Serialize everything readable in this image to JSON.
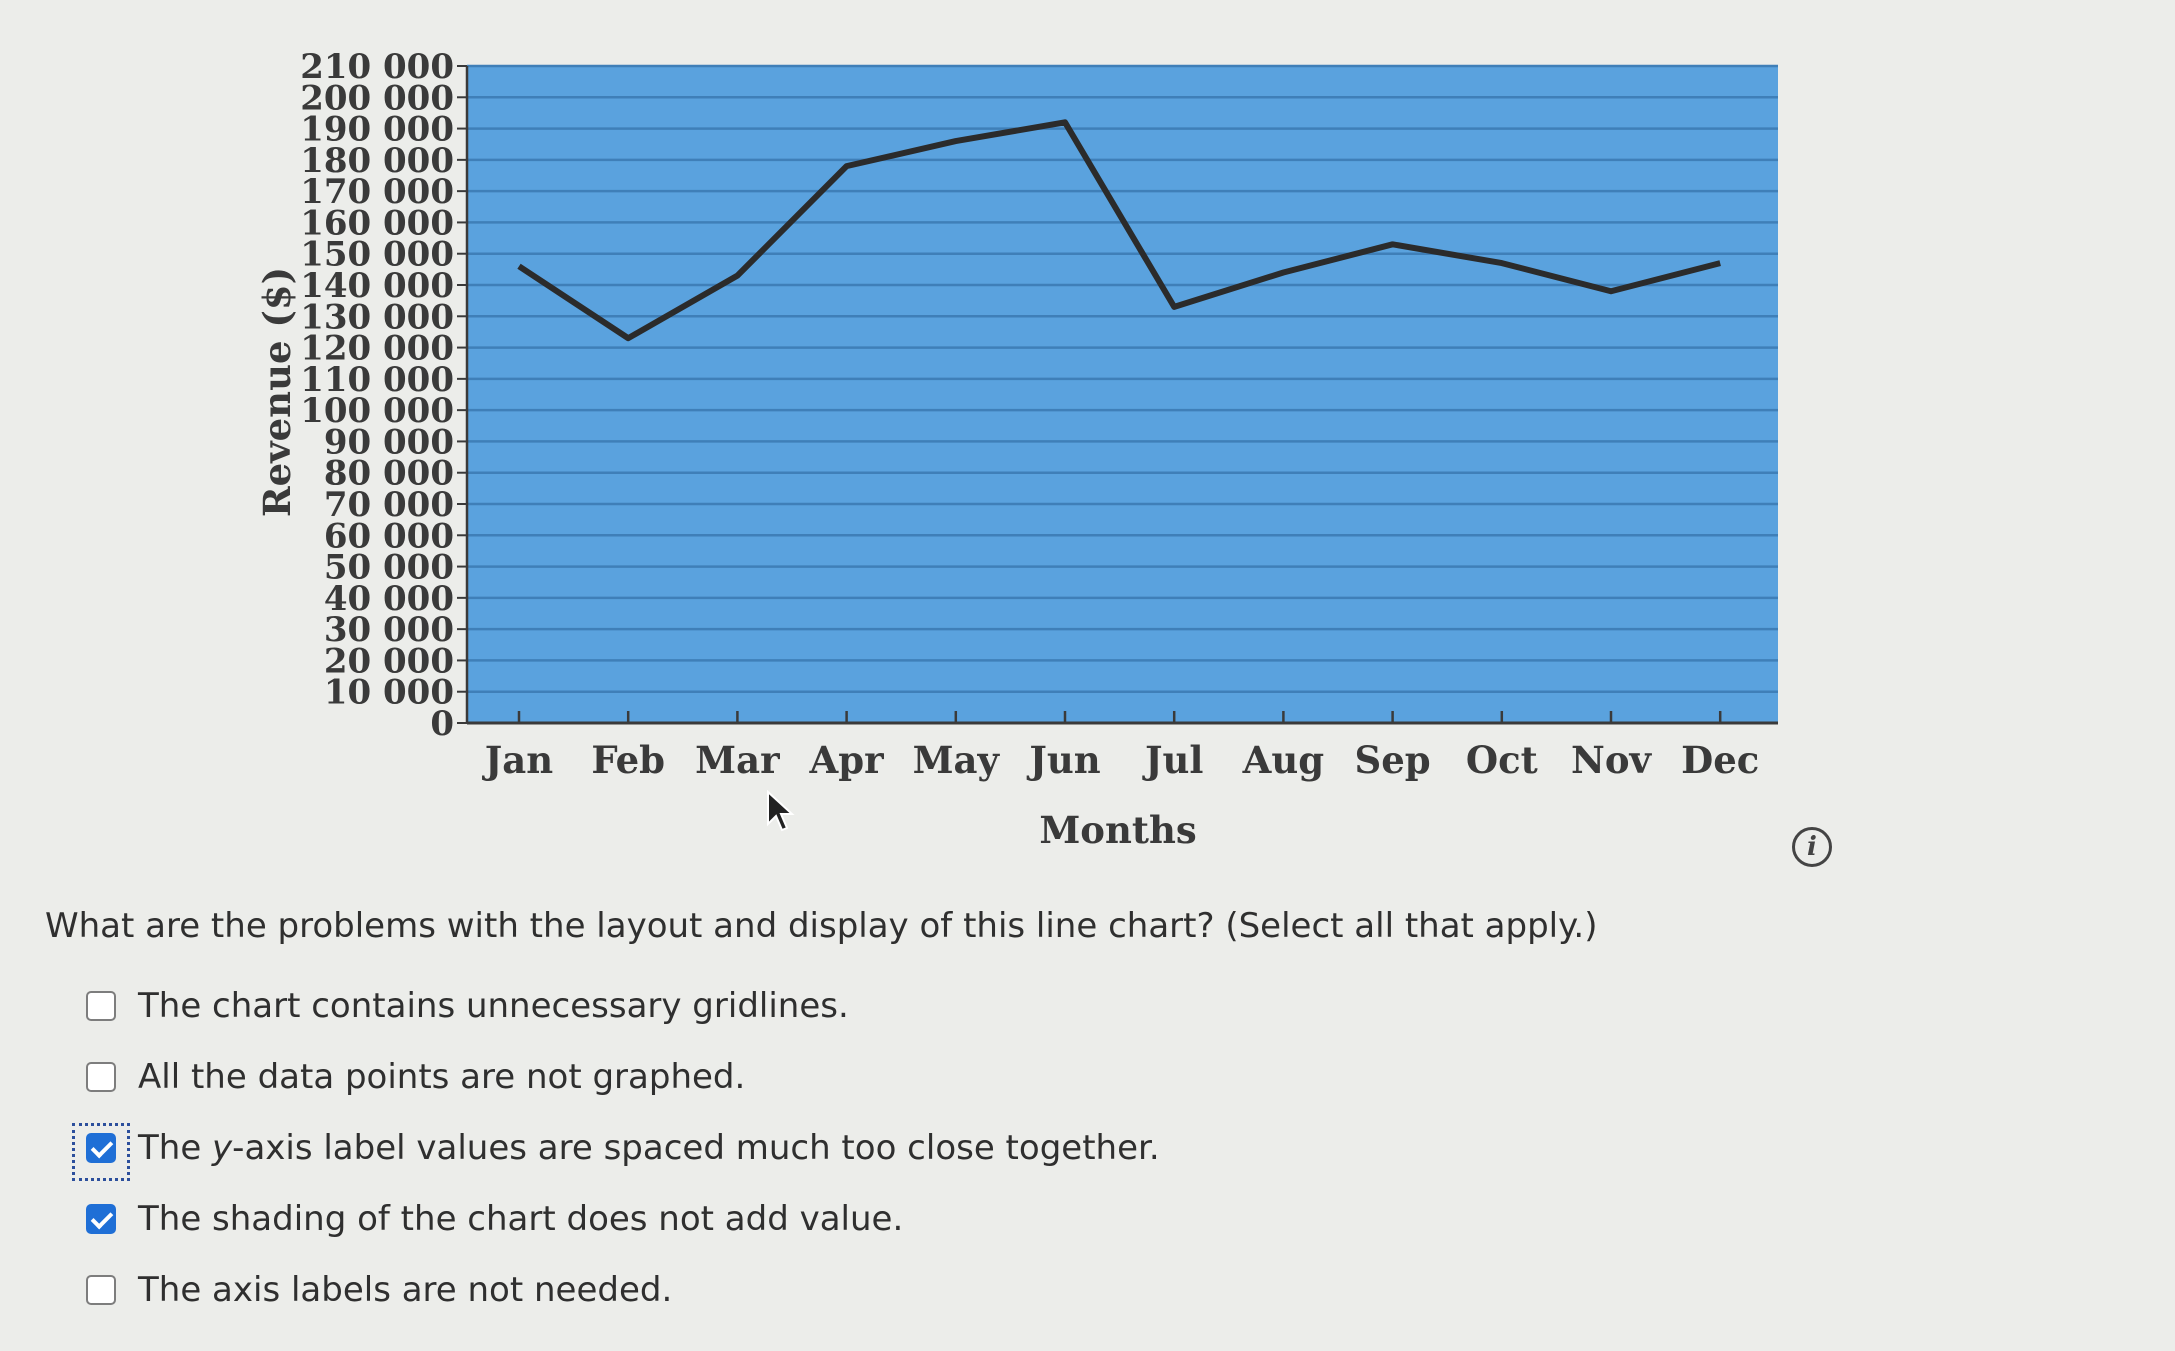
{
  "chart_data": {
    "type": "line",
    "xlabel": "Months",
    "ylabel": "Revenue ($)",
    "categories": [
      "Jan",
      "Feb",
      "Mar",
      "Apr",
      "May",
      "Jun",
      "Jul",
      "Aug",
      "Sep",
      "Oct",
      "Nov",
      "Dec"
    ],
    "values": [
      146000,
      123000,
      143000,
      178000,
      186000,
      192000,
      133000,
      144000,
      153000,
      147000,
      138000,
      147000
    ],
    "ylim": [
      0,
      210000
    ],
    "yticks": [
      "0",
      "10 000",
      "20 000",
      "30 000",
      "40 000",
      "50 000",
      "60 000",
      "70 000",
      "80 000",
      "90 000",
      "100 000",
      "110 000",
      "120 000",
      "130 000",
      "140 000",
      "150 000",
      "160 000",
      "170 000",
      "180 000",
      "190 000",
      "200 000",
      "210 000"
    ],
    "grid": true,
    "colors": {
      "plot_background": "#5aa2de",
      "gridline": "#3f7fb8",
      "line": "#2b2b2b"
    }
  },
  "question": {
    "text": "What are the problems with the layout and display of this line chart? (Select all that apply.)",
    "options": [
      {
        "label": "The chart contains unnecessary gridlines.",
        "checked": false
      },
      {
        "label": "All the data points are not graphed.",
        "checked": false
      },
      {
        "label_before": "The ",
        "label_em": "y",
        "label_after": "-axis label values are spaced much too close together.",
        "checked": true,
        "focused": true
      },
      {
        "label": "The shading of the chart does not add value.",
        "checked": true
      },
      {
        "label": "The axis labels are not needed.",
        "checked": false
      }
    ]
  },
  "info_icon": {
    "glyph": "i",
    "icon": "info-icon"
  }
}
